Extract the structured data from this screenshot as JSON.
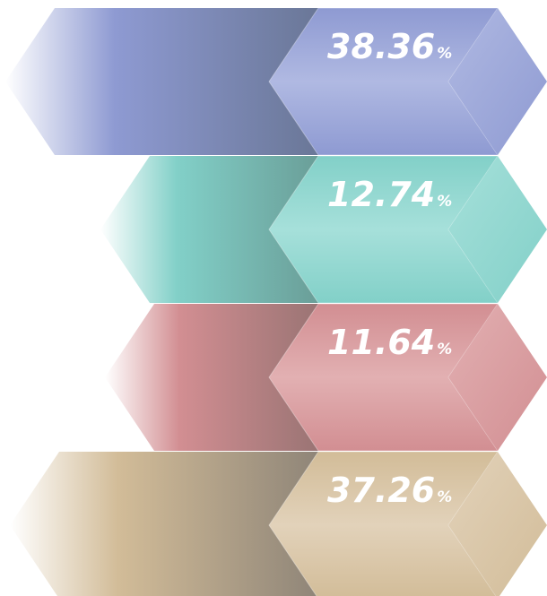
{
  "chart_data": {
    "type": "bar",
    "orientation": "horizontal",
    "title": "",
    "xlabel": "",
    "ylabel": "",
    "unit": "%",
    "values": [
      38.36,
      12.74,
      11.64,
      37.26
    ],
    "labels": [
      "38.36",
      "12.74",
      "11.64",
      "37.26"
    ],
    "colors": [
      {
        "dark": "#6a7797",
        "mid": "#8e9ad2",
        "light": "#b0b9e2"
      },
      {
        "dark": "#6a9e98",
        "mid": "#82d0c8",
        "light": "#a6e0da"
      },
      {
        "dark": "#9a7474",
        "mid": "#d28e92",
        "light": "#e2b0b2"
      },
      {
        "dark": "#8f8578",
        "mid": "#d2bc98",
        "light": "#e2d2ba"
      }
    ]
  }
}
